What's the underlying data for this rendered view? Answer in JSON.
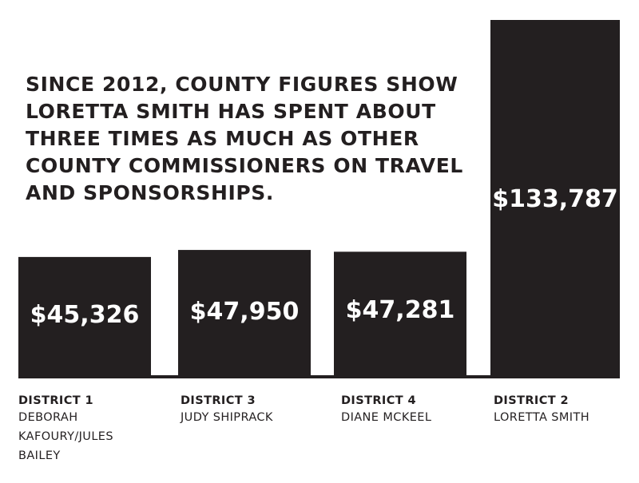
{
  "headline": {
    "lines": [
      "SINCE 2012, COUNTY FIGURES SHOW",
      "LORETTA SMITH HAS SPENT ABOUT",
      "THREE TIMES AS MUCH AS OTHER",
      "COUNTY COMMISSIONERS ON TRAVEL",
      "AND SPONSORSHIPS."
    ]
  },
  "colors": {
    "bar": "#231f20",
    "bar_text": "#ffffff",
    "text": "#231f20",
    "background": "#ffffff"
  },
  "chart_data": {
    "type": "bar",
    "title": "SINCE 2012, COUNTY FIGURES SHOW LORETTA SMITH HAS SPENT ABOUT THREE TIMES AS MUCH AS OTHER COUNTY COMMISSIONERS ON TRAVEL AND SPONSORSHIPS.",
    "categories": [
      "DISTRICT 1",
      "DISTRICT 3",
      "DISTRICT 4",
      "DISTRICT 2"
    ],
    "members": [
      [
        "DEBORAH",
        "KAFOURY/JULES",
        "BAILEY"
      ],
      [
        "JUDY SHIPRACK"
      ],
      [
        "DIANE MCKEEL"
      ],
      [
        "LORETTA SMITH"
      ]
    ],
    "values": [
      45326,
      47950,
      47281,
      133787
    ],
    "value_labels": [
      "$45,326",
      "$47,950",
      "$47,281",
      "$133,787"
    ],
    "xlabel": "",
    "ylabel": "",
    "ylim": [
      0,
      133787
    ],
    "grid": false,
    "legend": "none"
  }
}
